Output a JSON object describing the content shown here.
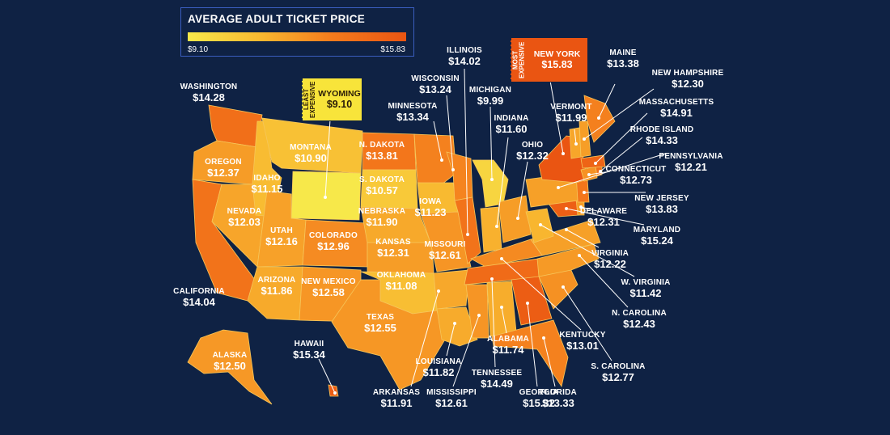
{
  "legend": {
    "title": "AVERAGE ADULT TICKET PRICE",
    "min_label": "$9.10",
    "max_label": "$15.83",
    "min_value": 9.1,
    "max_value": 15.83,
    "gradient_colors": [
      "#f7e84a",
      "#f8b830",
      "#f47a1c",
      "#ea5512"
    ]
  },
  "colors": {
    "background": "#0f2244",
    "legend_border": "#3a5dbf",
    "label_text": "#ffffff",
    "leader_line": "#ffffff"
  },
  "callouts": {
    "least_expensive": {
      "tag_text": "LEAST EXPENSIVE",
      "state": "WYOMING",
      "price": "$9.10"
    },
    "most_expensive": {
      "tag_text": "MOST EXPENSIVE",
      "state": "NEW YORK",
      "price": "$15.83"
    }
  },
  "states": [
    {
      "id": "washington",
      "name": "WASHINGTON",
      "price": "$14.28",
      "value": 14.28
    },
    {
      "id": "oregon",
      "name": "OREGON",
      "price": "$12.37",
      "value": 12.37
    },
    {
      "id": "california",
      "name": "CALIFORNIA",
      "price": "$14.04",
      "value": 14.04
    },
    {
      "id": "nevada",
      "name": "NEVADA",
      "price": "$12.03",
      "value": 12.03
    },
    {
      "id": "idaho",
      "name": "IDAHO",
      "price": "$11.15",
      "value": 11.15
    },
    {
      "id": "montana",
      "name": "MONTANA",
      "price": "$10.90",
      "value": 10.9
    },
    {
      "id": "wyoming",
      "name": "WYOMING",
      "price": "$9.10",
      "value": 9.1
    },
    {
      "id": "utah",
      "name": "UTAH",
      "price": "$12.16",
      "value": 12.16
    },
    {
      "id": "colorado",
      "name": "COLORADO",
      "price": "$12.96",
      "value": 12.96
    },
    {
      "id": "arizona",
      "name": "ARIZONA",
      "price": "$11.86",
      "value": 11.86
    },
    {
      "id": "new-mexico",
      "name": "NEW MEXICO",
      "price": "$12.58",
      "value": 12.58
    },
    {
      "id": "n-dakota",
      "name": "N. DAKOTA",
      "price": "$13.81",
      "value": 13.81
    },
    {
      "id": "s-dakota",
      "name": "S. DAKOTA",
      "price": "$10.57",
      "value": 10.57
    },
    {
      "id": "nebraska",
      "name": "NEBRASKA",
      "price": "$11.90",
      "value": 11.9
    },
    {
      "id": "kansas",
      "name": "KANSAS",
      "price": "$12.31",
      "value": 12.31
    },
    {
      "id": "oklahoma",
      "name": "OKLAHOMA",
      "price": "$11.08",
      "value": 11.08
    },
    {
      "id": "texas",
      "name": "TEXAS",
      "price": "$12.55",
      "value": 12.55
    },
    {
      "id": "minnesota",
      "name": "MINNESOTA",
      "price": "$13.34",
      "value": 13.34
    },
    {
      "id": "iowa",
      "name": "IOWA",
      "price": "$11.23",
      "value": 11.23
    },
    {
      "id": "missouri",
      "name": "MISSOURI",
      "price": "$12.61",
      "value": 12.61
    },
    {
      "id": "arkansas",
      "name": "ARKANSAS",
      "price": "$11.91",
      "value": 11.91
    },
    {
      "id": "louisiana",
      "name": "LOUISIANA",
      "price": "$11.82",
      "value": 11.82
    },
    {
      "id": "wisconsin",
      "name": "WISCONSIN",
      "price": "$13.24",
      "value": 13.24
    },
    {
      "id": "illinois",
      "name": "ILLINOIS",
      "price": "$14.02",
      "value": 14.02
    },
    {
      "id": "michigan",
      "name": "MICHIGAN",
      "price": "$9.99",
      "value": 9.99
    },
    {
      "id": "indiana",
      "name": "INDIANA",
      "price": "$11.60",
      "value": 11.6
    },
    {
      "id": "ohio",
      "name": "OHIO",
      "price": "$12.32",
      "value": 12.32
    },
    {
      "id": "kentucky",
      "name": "KENTUCKY",
      "price": "$13.01",
      "value": 13.01
    },
    {
      "id": "tennessee",
      "name": "TENNESSEE",
      "price": "$14.49",
      "value": 14.49
    },
    {
      "id": "mississippi",
      "name": "MISSISSIPPI",
      "price": "$12.61",
      "value": 12.61
    },
    {
      "id": "alabama",
      "name": "ALABAMA",
      "price": "$11.74",
      "value": 11.74
    },
    {
      "id": "georgia",
      "name": "GEORGIA",
      "price": "$15.32",
      "value": 15.32
    },
    {
      "id": "florida",
      "name": "FLORIDA",
      "price": "$13.33",
      "value": 13.33
    },
    {
      "id": "s-carolina",
      "name": "S. CAROLINA",
      "price": "$12.77",
      "value": 12.77
    },
    {
      "id": "n-carolina",
      "name": "N. CAROLINA",
      "price": "$12.43",
      "value": 12.43
    },
    {
      "id": "virginia",
      "name": "VIRGINIA",
      "price": "$12.22",
      "value": 12.22
    },
    {
      "id": "w-virginia",
      "name": "W. VIRGINIA",
      "price": "$11.42",
      "value": 11.42
    },
    {
      "id": "maryland",
      "name": "MARYLAND",
      "price": "$15.24",
      "value": 15.24
    },
    {
      "id": "delaware",
      "name": "DELAWARE",
      "price": "$12.31",
      "value": 12.31
    },
    {
      "id": "new-jersey",
      "name": "NEW JERSEY",
      "price": "$13.83",
      "value": 13.83
    },
    {
      "id": "pennsylvania",
      "name": "PENNSYLVANIA",
      "price": "$12.21",
      "value": 12.21
    },
    {
      "id": "new-york",
      "name": "NEW YORK",
      "price": "$15.83",
      "value": 15.83
    },
    {
      "id": "connecticut",
      "name": "CONNECTICUT",
      "price": "$12.73",
      "value": 12.73
    },
    {
      "id": "rhode-island",
      "name": "RHODE ISLAND",
      "price": "$14.33",
      "value": 14.33
    },
    {
      "id": "massachusetts",
      "name": "MASSACHUSETTS",
      "price": "$14.91",
      "value": 14.91
    },
    {
      "id": "vermont",
      "name": "VERMONT",
      "price": "$11.99",
      "value": 11.99
    },
    {
      "id": "new-hampshire",
      "name": "NEW HAMPSHIRE",
      "price": "$12.30",
      "value": 12.3
    },
    {
      "id": "maine",
      "name": "MAINE",
      "price": "$13.38",
      "value": 13.38
    },
    {
      "id": "alaska",
      "name": "ALASKA",
      "price": "$12.50",
      "value": 12.5
    },
    {
      "id": "hawaii",
      "name": "HAWAII",
      "price": "$15.34",
      "value": 15.34
    }
  ]
}
